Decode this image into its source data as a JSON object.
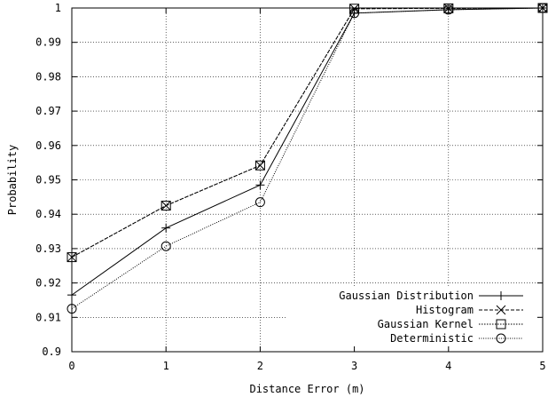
{
  "chart_data": {
    "type": "line",
    "title": "",
    "xlabel": "Distance Error (m)",
    "ylabel": "Probability",
    "x": [
      0,
      1,
      2,
      3,
      4,
      5
    ],
    "xlim": [
      0,
      5
    ],
    "ylim": [
      0.9,
      1.0
    ],
    "xticks": [
      "0",
      "1",
      "2",
      "3",
      "4",
      "5"
    ],
    "yticks": [
      "0.9",
      "0.91",
      "0.92",
      "0.93",
      "0.94",
      "0.95",
      "0.96",
      "0.97",
      "0.98",
      "0.99",
      "1"
    ],
    "grid": true,
    "legend_position": "bottom-right",
    "series": [
      {
        "name": "Gaussian Distribution",
        "values": [
          0.9165,
          0.936,
          0.9485,
          0.9985,
          0.9995,
          1.0
        ],
        "marker": "plus",
        "dash": "solid",
        "color": "#000000"
      },
      {
        "name": "Histogram",
        "values": [
          0.9275,
          0.9425,
          0.9542,
          0.9998,
          0.9999,
          1.0
        ],
        "marker": "cross",
        "dash": "dashed",
        "color": "#000000"
      },
      {
        "name": "Gaussian Kernel",
        "values": [
          0.9275,
          0.9425,
          0.9542,
          0.9998,
          0.9999,
          1.0
        ],
        "marker": "square",
        "dash": "dotted",
        "color": "#000000"
      },
      {
        "name": "Deterministic",
        "values": [
          0.9125,
          0.9307,
          0.9435,
          0.9985,
          0.9995,
          1.0
        ],
        "marker": "circle",
        "dash": "finedot",
        "color": "#000000"
      }
    ]
  }
}
